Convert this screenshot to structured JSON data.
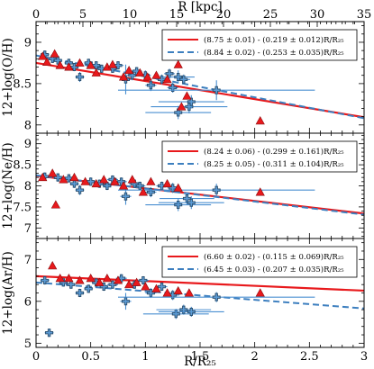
{
  "chart_data": [
    {
      "type": "scatter",
      "ylabel": "12+log(O/H)",
      "top_xlabel": "R [kpc]",
      "xlim": [
        0,
        3.0
      ],
      "top_xlim": [
        0,
        35
      ],
      "ylim": [
        7.9,
        9.25
      ],
      "yticks": [
        "8",
        "8.5",
        "9"
      ],
      "top_xticks": [
        "0",
        "5",
        "10",
        "15",
        "20",
        "25",
        "30",
        "35"
      ],
      "legend": [
        {
          "text": "(8.75 ± 0.01) - (0.219 ± 0.012)R/R₂₅",
          "style": "solid-red"
        },
        {
          "text": "(8.84 ± 0.02) - (0.253 ± 0.035)R/R₂₅",
          "style": "dashed-blue"
        }
      ],
      "fits": [
        {
          "name": "(8.75 ± 0.01) - (0.219 ± 0.012)R/R₂₅",
          "intercept": 8.75,
          "slope": -0.219,
          "color": "#e8191c",
          "dash": false
        },
        {
          "name": "(8.84 ± 0.02) - (0.253 ± 0.035)R/R₂₅",
          "intercept": 8.84,
          "slope": -0.253,
          "color": "#3d7fbf",
          "dash": true
        }
      ],
      "triangles": [
        [
          0.06,
          8.83
        ],
        [
          0.1,
          8.76
        ],
        [
          0.17,
          8.86
        ],
        [
          0.22,
          8.72
        ],
        [
          0.3,
          8.7
        ],
        [
          0.4,
          8.75
        ],
        [
          0.5,
          8.72
        ],
        [
          0.55,
          8.63
        ],
        [
          0.65,
          8.7
        ],
        [
          0.7,
          8.73
        ],
        [
          0.8,
          8.58
        ],
        [
          0.85,
          8.66
        ],
        [
          0.95,
          8.63
        ],
        [
          1.02,
          8.58
        ],
        [
          1.1,
          8.6
        ],
        [
          1.2,
          8.55
        ],
        [
          1.3,
          8.73
        ],
        [
          1.33,
          8.22
        ],
        [
          1.38,
          8.35
        ],
        [
          2.05,
          8.05
        ]
      ],
      "crosses": [
        {
          "x": 0.08,
          "y": 8.85,
          "xerr": 0.04,
          "yerr": 0.05
        },
        {
          "x": 0.15,
          "y": 8.8,
          "xerr": 0.04,
          "yerr": 0.05
        },
        {
          "x": 0.2,
          "y": 8.78,
          "xerr": 0.04,
          "yerr": 0.05
        },
        {
          "x": 0.3,
          "y": 8.75,
          "xerr": 0.04,
          "yerr": 0.05
        },
        {
          "x": 0.35,
          "y": 8.7,
          "xerr": 0.04,
          "yerr": 0.05
        },
        {
          "x": 0.4,
          "y": 8.58,
          "xerr": 0.04,
          "yerr": 0.06
        },
        {
          "x": 0.48,
          "y": 8.75,
          "xerr": 0.04,
          "yerr": 0.05
        },
        {
          "x": 0.55,
          "y": 8.72,
          "xerr": 0.04,
          "yerr": 0.05
        },
        {
          "x": 0.6,
          "y": 8.68,
          "xerr": 0.04,
          "yerr": 0.05
        },
        {
          "x": 0.7,
          "y": 8.68,
          "xerr": 0.05,
          "yerr": 0.05
        },
        {
          "x": 0.75,
          "y": 8.72,
          "xerr": 0.05,
          "yerr": 0.05
        },
        {
          "x": 0.82,
          "y": 8.55,
          "xerr": 0.05,
          "yerr": 0.18
        },
        {
          "x": 0.88,
          "y": 8.6,
          "xerr": 0.05,
          "yerr": 0.06
        },
        {
          "x": 0.92,
          "y": 8.65,
          "xerr": 0.05,
          "yerr": 0.05
        },
        {
          "x": 1.0,
          "y": 8.6,
          "xerr": 0.05,
          "yerr": 0.06
        },
        {
          "x": 1.05,
          "y": 8.48,
          "xerr": 0.05,
          "yerr": 0.07
        },
        {
          "x": 1.15,
          "y": 8.55,
          "xerr": 0.05,
          "yerr": 0.06
        },
        {
          "x": 1.22,
          "y": 8.62,
          "xerr": 0.05,
          "yerr": 0.06
        },
        {
          "x": 1.25,
          "y": 8.45,
          "xerr": 0.05,
          "yerr": 0.06
        },
        {
          "x": 1.3,
          "y": 8.58,
          "xerr": 0.15,
          "yerr": 0.08
        },
        {
          "x": 1.35,
          "y": 8.55,
          "xerr": 0.06,
          "yerr": 0.06
        },
        {
          "x": 1.4,
          "y": 8.22,
          "xerr": 0.35,
          "yerr": 0.08
        },
        {
          "x": 1.42,
          "y": 8.28,
          "xerr": 0.3,
          "yerr": 0.08
        },
        {
          "x": 1.3,
          "y": 8.15,
          "xerr": 0.3,
          "yerr": 0.08
        },
        {
          "x": 1.65,
          "y": 8.42,
          "xerr": 0.9,
          "yerr": 0.12
        }
      ]
    },
    {
      "type": "scatter",
      "ylabel": "12+log(Ne/H)",
      "xlim": [
        0,
        3.0
      ],
      "ylim": [
        6.75,
        9.25
      ],
      "yticks": [
        "7",
        "7.5",
        "8",
        "8.5",
        "9"
      ],
      "legend": [
        {
          "text": "(8.24 ± 0.06) - (0.299 ± 0.161)R/R₂₅",
          "style": "solid-red"
        },
        {
          "text": "(8.25 ± 0.05) - (0.311 ± 0.104)R/R₂₅",
          "style": "dashed-blue"
        }
      ],
      "fits": [
        {
          "name": "(8.24 ± 0.06) - (0.299 ± 0.161)R/R₂₅",
          "intercept": 8.24,
          "slope": -0.299,
          "color": "#e8191c",
          "dash": false
        },
        {
          "name": "(8.25 ± 0.05) - (0.311 ± 0.104)R/R₂₅",
          "intercept": 8.25,
          "slope": -0.311,
          "color": "#3d7fbf",
          "dash": true
        }
      ],
      "triangles": [
        [
          0.06,
          8.2
        ],
        [
          0.15,
          8.3
        ],
        [
          0.18,
          7.55
        ],
        [
          0.25,
          8.15
        ],
        [
          0.35,
          8.2
        ],
        [
          0.45,
          8.1
        ],
        [
          0.55,
          8.05
        ],
        [
          0.62,
          8.15
        ],
        [
          0.72,
          8.1
        ],
        [
          0.8,
          8.0
        ],
        [
          0.88,
          8.15
        ],
        [
          0.98,
          7.85
        ],
        [
          1.05,
          8.1
        ],
        [
          1.2,
          8.05
        ],
        [
          1.3,
          7.95
        ],
        [
          2.05,
          7.85
        ]
      ],
      "crosses": [
        {
          "x": 0.08,
          "y": 8.22,
          "xerr": 0.04,
          "yerr": 0.1
        },
        {
          "x": 0.2,
          "y": 8.2,
          "xerr": 0.04,
          "yerr": 0.1
        },
        {
          "x": 0.3,
          "y": 8.18,
          "xerr": 0.04,
          "yerr": 0.1
        },
        {
          "x": 0.35,
          "y": 8.05,
          "xerr": 0.04,
          "yerr": 0.1
        },
        {
          "x": 0.4,
          "y": 7.9,
          "xerr": 0.04,
          "yerr": 0.12
        },
        {
          "x": 0.5,
          "y": 8.1,
          "xerr": 0.04,
          "yerr": 0.1
        },
        {
          "x": 0.58,
          "y": 8.05,
          "xerr": 0.04,
          "yerr": 0.1
        },
        {
          "x": 0.65,
          "y": 8.0,
          "xerr": 0.04,
          "yerr": 0.1
        },
        {
          "x": 0.7,
          "y": 8.15,
          "xerr": 0.05,
          "yerr": 0.1
        },
        {
          "x": 0.78,
          "y": 8.1,
          "xerr": 0.05,
          "yerr": 0.1
        },
        {
          "x": 0.82,
          "y": 7.75,
          "xerr": 0.05,
          "yerr": 0.2
        },
        {
          "x": 0.9,
          "y": 8.05,
          "xerr": 0.05,
          "yerr": 0.1
        },
        {
          "x": 0.95,
          "y": 8.0,
          "xerr": 0.05,
          "yerr": 0.1
        },
        {
          "x": 1.05,
          "y": 7.85,
          "xerr": 0.05,
          "yerr": 0.12
        },
        {
          "x": 1.15,
          "y": 8.0,
          "xerr": 0.05,
          "yerr": 0.1
        },
        {
          "x": 1.25,
          "y": 7.95,
          "xerr": 0.05,
          "yerr": 0.12
        },
        {
          "x": 1.3,
          "y": 7.55,
          "xerr": 0.3,
          "yerr": 0.15
        },
        {
          "x": 1.38,
          "y": 7.7,
          "xerr": 0.25,
          "yerr": 0.15
        },
        {
          "x": 1.42,
          "y": 7.6,
          "xerr": 0.3,
          "yerr": 0.15
        },
        {
          "x": 1.65,
          "y": 7.9,
          "xerr": 0.9,
          "yerr": 0.15
        }
      ]
    },
    {
      "type": "scatter",
      "ylabel": "12+log(Ar/H)",
      "xlabel": "R/R₂₅",
      "xlim": [
        0,
        3.0
      ],
      "ylim": [
        4.9,
        7.5
      ],
      "yticks": [
        "5",
        "6",
        "7",
        "8"
      ],
      "xticks": [
        "0",
        "0.5",
        "1",
        "1.5",
        "2",
        "2.5",
        "3"
      ],
      "legend": [
        {
          "text": "(6.60 ± 0.02) - (0.115 ± 0.069)R/R₂₅",
          "style": "solid-red"
        },
        {
          "text": "(6.45 ± 0.03) - (0.207 ± 0.035)R/R₂₅",
          "style": "dashed-blue"
        }
      ],
      "fits": [
        {
          "name": "(6.60 ± 0.02) - (0.115 ± 0.069)R/R₂₅",
          "intercept": 6.6,
          "slope": -0.115,
          "color": "#e8191c",
          "dash": false
        },
        {
          "name": "(6.45 ± 0.03) - (0.207 ± 0.035)R/R₂₅",
          "intercept": 6.45,
          "slope": -0.207,
          "color": "#3d7fbf",
          "dash": true
        }
      ],
      "triangles": [
        [
          0.15,
          6.85
        ],
        [
          0.22,
          6.55
        ],
        [
          0.3,
          6.55
        ],
        [
          0.4,
          6.5
        ],
        [
          0.5,
          6.55
        ],
        [
          0.58,
          6.45
        ],
        [
          0.65,
          6.55
        ],
        [
          0.75,
          6.5
        ],
        [
          0.85,
          6.4
        ],
        [
          0.92,
          6.45
        ],
        [
          1.0,
          6.35
        ],
        [
          1.1,
          6.3
        ],
        [
          1.2,
          6.2
        ],
        [
          1.3,
          6.25
        ],
        [
          1.4,
          6.2
        ],
        [
          2.05,
          6.2
        ]
      ],
      "crosses": [
        {
          "x": 0.08,
          "y": 6.5,
          "xerr": 0.04,
          "yerr": 0.1
        },
        {
          "x": 0.12,
          "y": 5.25,
          "xerr": 0.04,
          "yerr": 0.1
        },
        {
          "x": 0.25,
          "y": 6.45,
          "xerr": 0.04,
          "yerr": 0.1
        },
        {
          "x": 0.32,
          "y": 6.4,
          "xerr": 0.04,
          "yerr": 0.1
        },
        {
          "x": 0.4,
          "y": 6.2,
          "xerr": 0.04,
          "yerr": 0.1
        },
        {
          "x": 0.48,
          "y": 6.3,
          "xerr": 0.04,
          "yerr": 0.1
        },
        {
          "x": 0.55,
          "y": 6.45,
          "xerr": 0.04,
          "yerr": 0.1
        },
        {
          "x": 0.62,
          "y": 6.35,
          "xerr": 0.04,
          "yerr": 0.1
        },
        {
          "x": 0.7,
          "y": 6.4,
          "xerr": 0.05,
          "yerr": 0.1
        },
        {
          "x": 0.78,
          "y": 6.55,
          "xerr": 0.05,
          "yerr": 0.1
        },
        {
          "x": 0.82,
          "y": 6.0,
          "xerr": 0.05,
          "yerr": 0.2
        },
        {
          "x": 0.9,
          "y": 6.4,
          "xerr": 0.05,
          "yerr": 0.1
        },
        {
          "x": 0.98,
          "y": 6.5,
          "xerr": 0.05,
          "yerr": 0.1
        },
        {
          "x": 1.05,
          "y": 6.2,
          "xerr": 0.05,
          "yerr": 0.12
        },
        {
          "x": 1.15,
          "y": 6.35,
          "xerr": 0.05,
          "yerr": 0.1
        },
        {
          "x": 1.25,
          "y": 6.15,
          "xerr": 0.06,
          "yerr": 0.12
        },
        {
          "x": 1.28,
          "y": 5.7,
          "xerr": 0.3,
          "yerr": 0.12
        },
        {
          "x": 1.35,
          "y": 5.8,
          "xerr": 0.25,
          "yerr": 0.12
        },
        {
          "x": 1.42,
          "y": 5.75,
          "xerr": 0.3,
          "yerr": 0.12
        },
        {
          "x": 1.65,
          "y": 6.1,
          "xerr": 0.9,
          "yerr": 0.12
        }
      ]
    }
  ]
}
